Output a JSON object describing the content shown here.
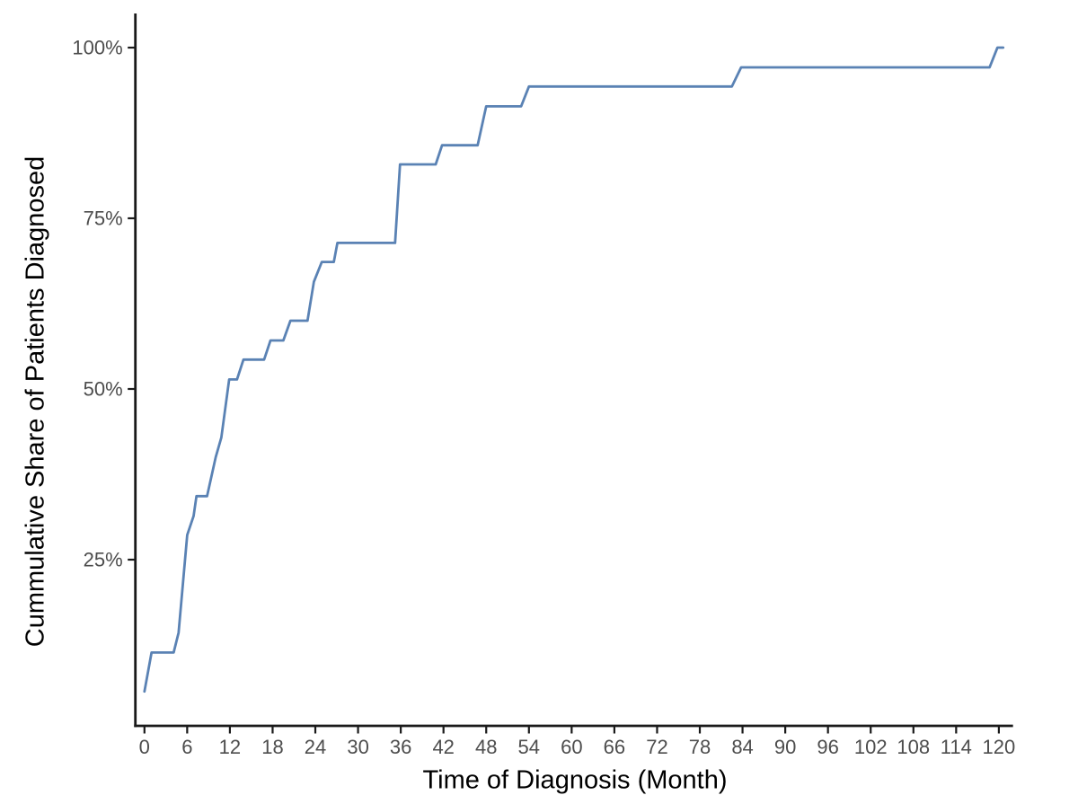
{
  "chart_data": {
    "type": "line",
    "subtype": "cumulative-step-curve",
    "title": "",
    "xlabel": "Time of Diagnosis (Month)",
    "ylabel": "Cummulative Share of Patients Diagnosed",
    "x_tick_values": [
      0,
      6,
      12,
      18,
      24,
      30,
      36,
      42,
      48,
      54,
      60,
      66,
      72,
      78,
      84,
      90,
      96,
      102,
      108,
      114,
      120
    ],
    "x_tick_labels": [
      "0",
      "6",
      "12",
      "18",
      "24",
      "30",
      "36",
      "42",
      "48",
      "54",
      "60",
      "66",
      "72",
      "78",
      "84",
      "90",
      "96",
      "102",
      "108",
      "114",
      "120"
    ],
    "y_tick_values": [
      25,
      50,
      75,
      100
    ],
    "y_tick_labels": [
      "25%",
      "50%",
      "75%",
      "100%"
    ],
    "xlim": [
      0,
      122
    ],
    "ylim": [
      0,
      104
    ],
    "grid": "off",
    "legend": "none",
    "line_color": "#5a82b4",
    "axis_color": "#1a1a1a",
    "tick_label_color": "#4d4d4d",
    "points_month_pct": [
      [
        0,
        5.7
      ],
      [
        1,
        11.4
      ],
      [
        4.1,
        11.4
      ],
      [
        4.8,
        14.3
      ],
      [
        6,
        28.6
      ],
      [
        6.9,
        31.4
      ],
      [
        7.3,
        34.3
      ],
      [
        8.8,
        34.3
      ],
      [
        10,
        40.0
      ],
      [
        10.8,
        42.9
      ],
      [
        11.9,
        51.4
      ],
      [
        13,
        51.4
      ],
      [
        13.9,
        54.3
      ],
      [
        16.8,
        54.3
      ],
      [
        17.7,
        57.1
      ],
      [
        19.5,
        57.1
      ],
      [
        20.5,
        60.0
      ],
      [
        22.9,
        60.0
      ],
      [
        23.8,
        65.7
      ],
      [
        24.9,
        68.6
      ],
      [
        26.6,
        68.6
      ],
      [
        27.1,
        71.4
      ],
      [
        35.2,
        71.4
      ],
      [
        35.9,
        82.9
      ],
      [
        40.9,
        82.9
      ],
      [
        41.8,
        85.7
      ],
      [
        46.8,
        85.7
      ],
      [
        48,
        91.4
      ],
      [
        52.9,
        91.4
      ],
      [
        54,
        94.3
      ],
      [
        82.5,
        94.3
      ],
      [
        83.8,
        97.1
      ],
      [
        118.7,
        97.1
      ],
      [
        119.8,
        100.0
      ],
      [
        120.6,
        100.0
      ]
    ]
  }
}
